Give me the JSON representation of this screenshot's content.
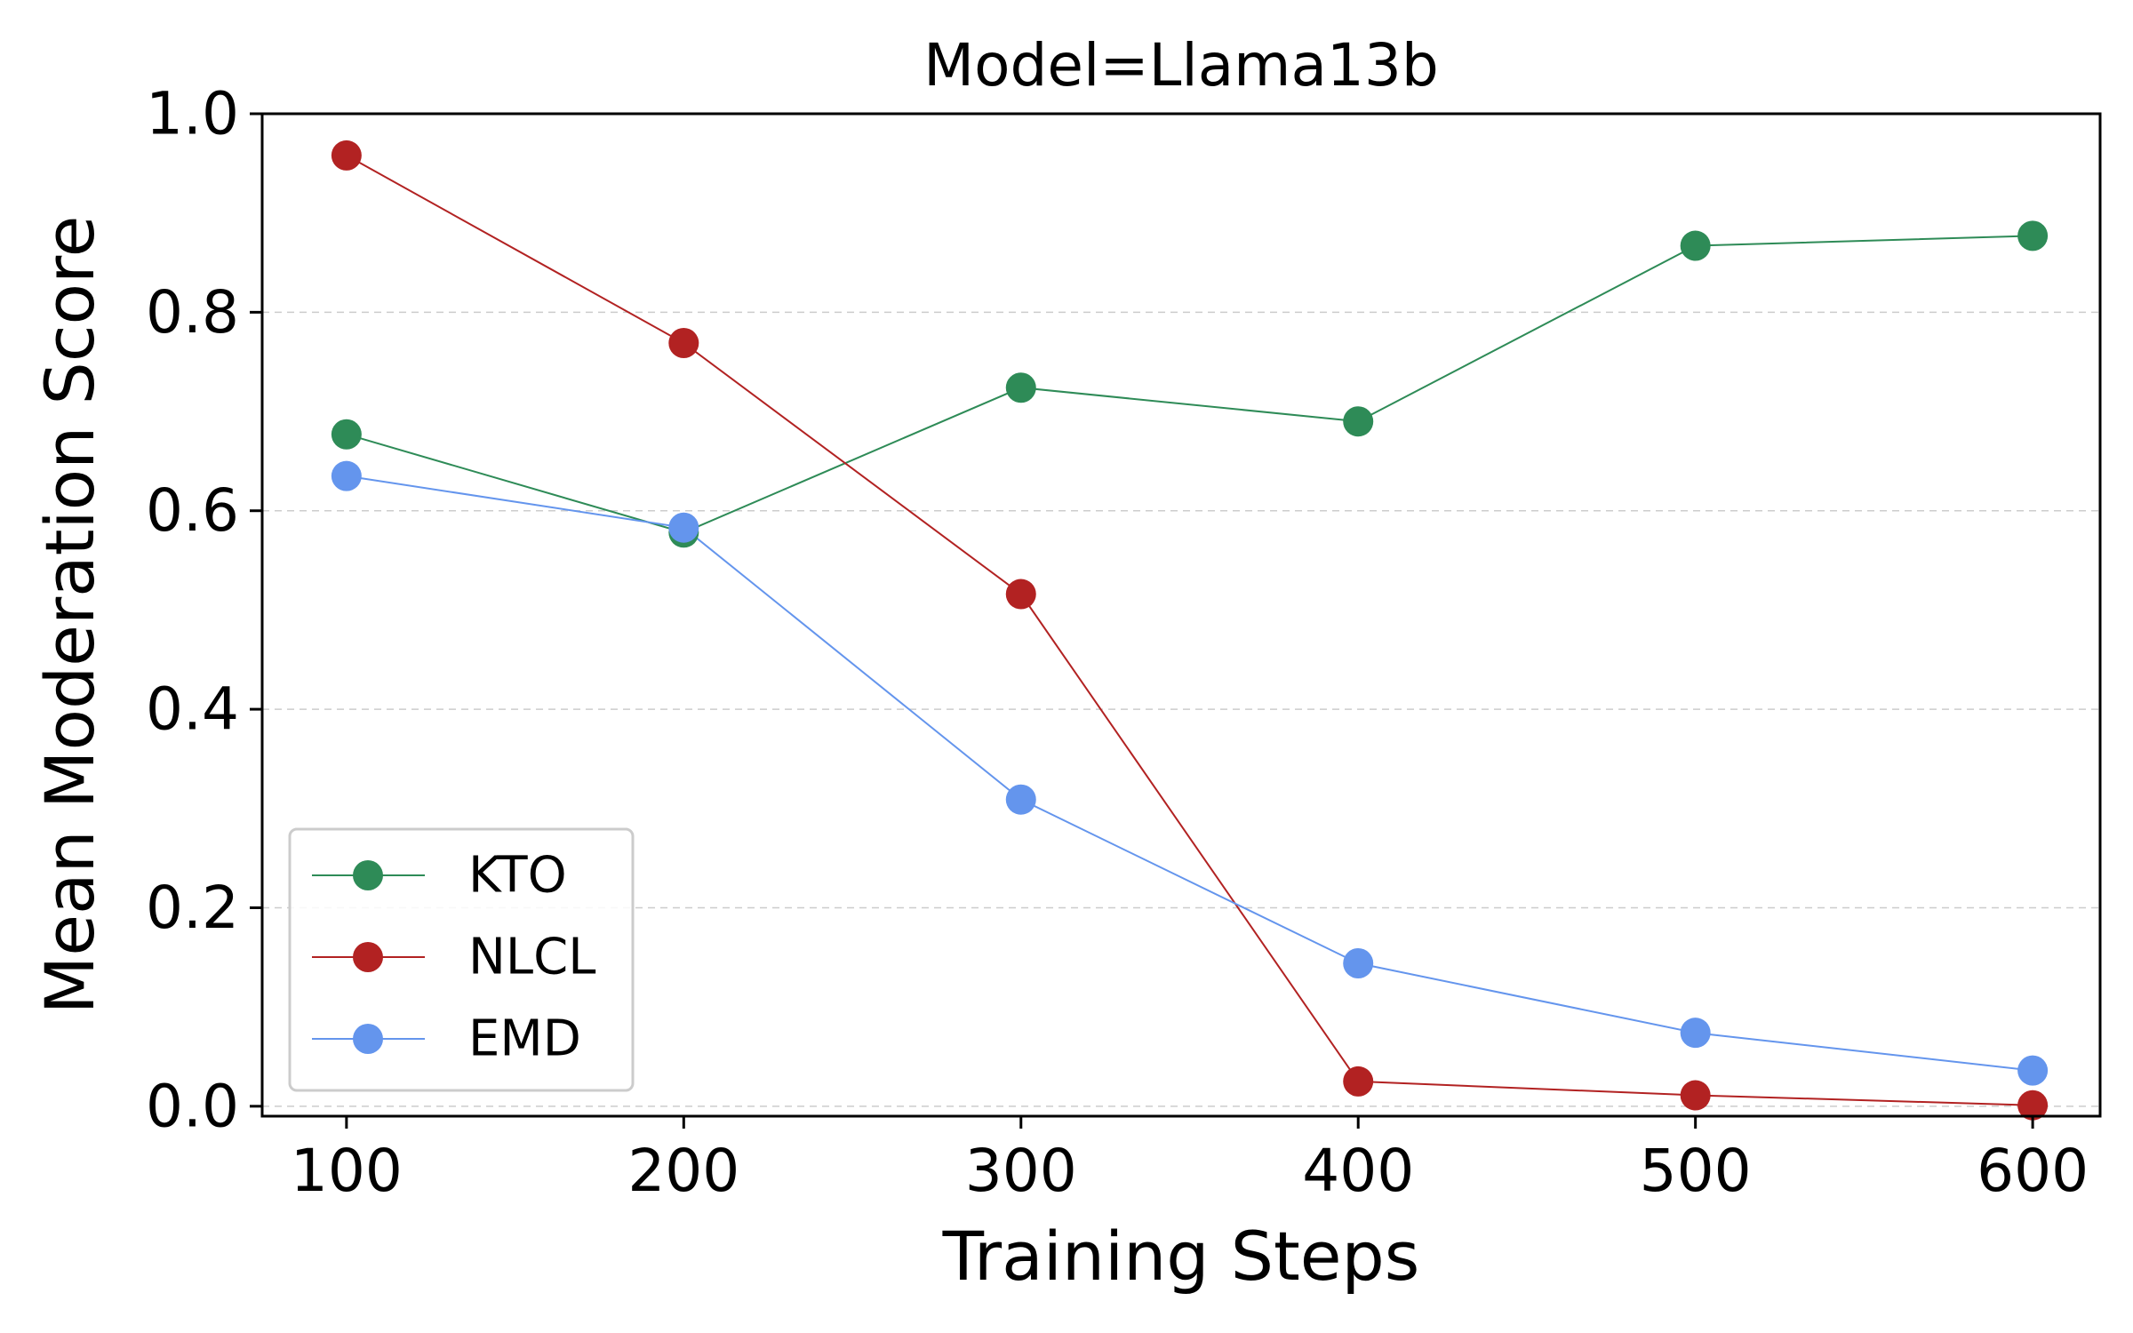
{
  "chart_data": {
    "type": "line",
    "title": "Model=Llama13b",
    "xlabel": "Training Steps",
    "ylabel": "Mean Moderation Score",
    "x": [
      100,
      200,
      300,
      400,
      500,
      600
    ],
    "xticks": [
      "100",
      "200",
      "300",
      "400",
      "500",
      "600"
    ],
    "yticks": [
      "0.0",
      "0.2",
      "0.4",
      "0.6",
      "0.8",
      "1.0"
    ],
    "xlim": [
      75,
      620
    ],
    "ylim": [
      -0.01,
      1.0
    ],
    "grid": "horizontal dashed",
    "legend_location": "lower-left",
    "series": [
      {
        "name": "KTO",
        "color": "#2e8b57",
        "values": [
          0.677,
          0.578,
          0.724,
          0.69,
          0.867,
          0.877
        ]
      },
      {
        "name": "NLCL",
        "color": "#b22222",
        "values": [
          0.958,
          0.769,
          0.516,
          0.025,
          0.011,
          0.001
        ]
      },
      {
        "name": "EMD",
        "color": "#6495ed",
        "values": [
          0.635,
          0.583,
          0.309,
          0.144,
          0.074,
          0.036
        ]
      }
    ]
  }
}
